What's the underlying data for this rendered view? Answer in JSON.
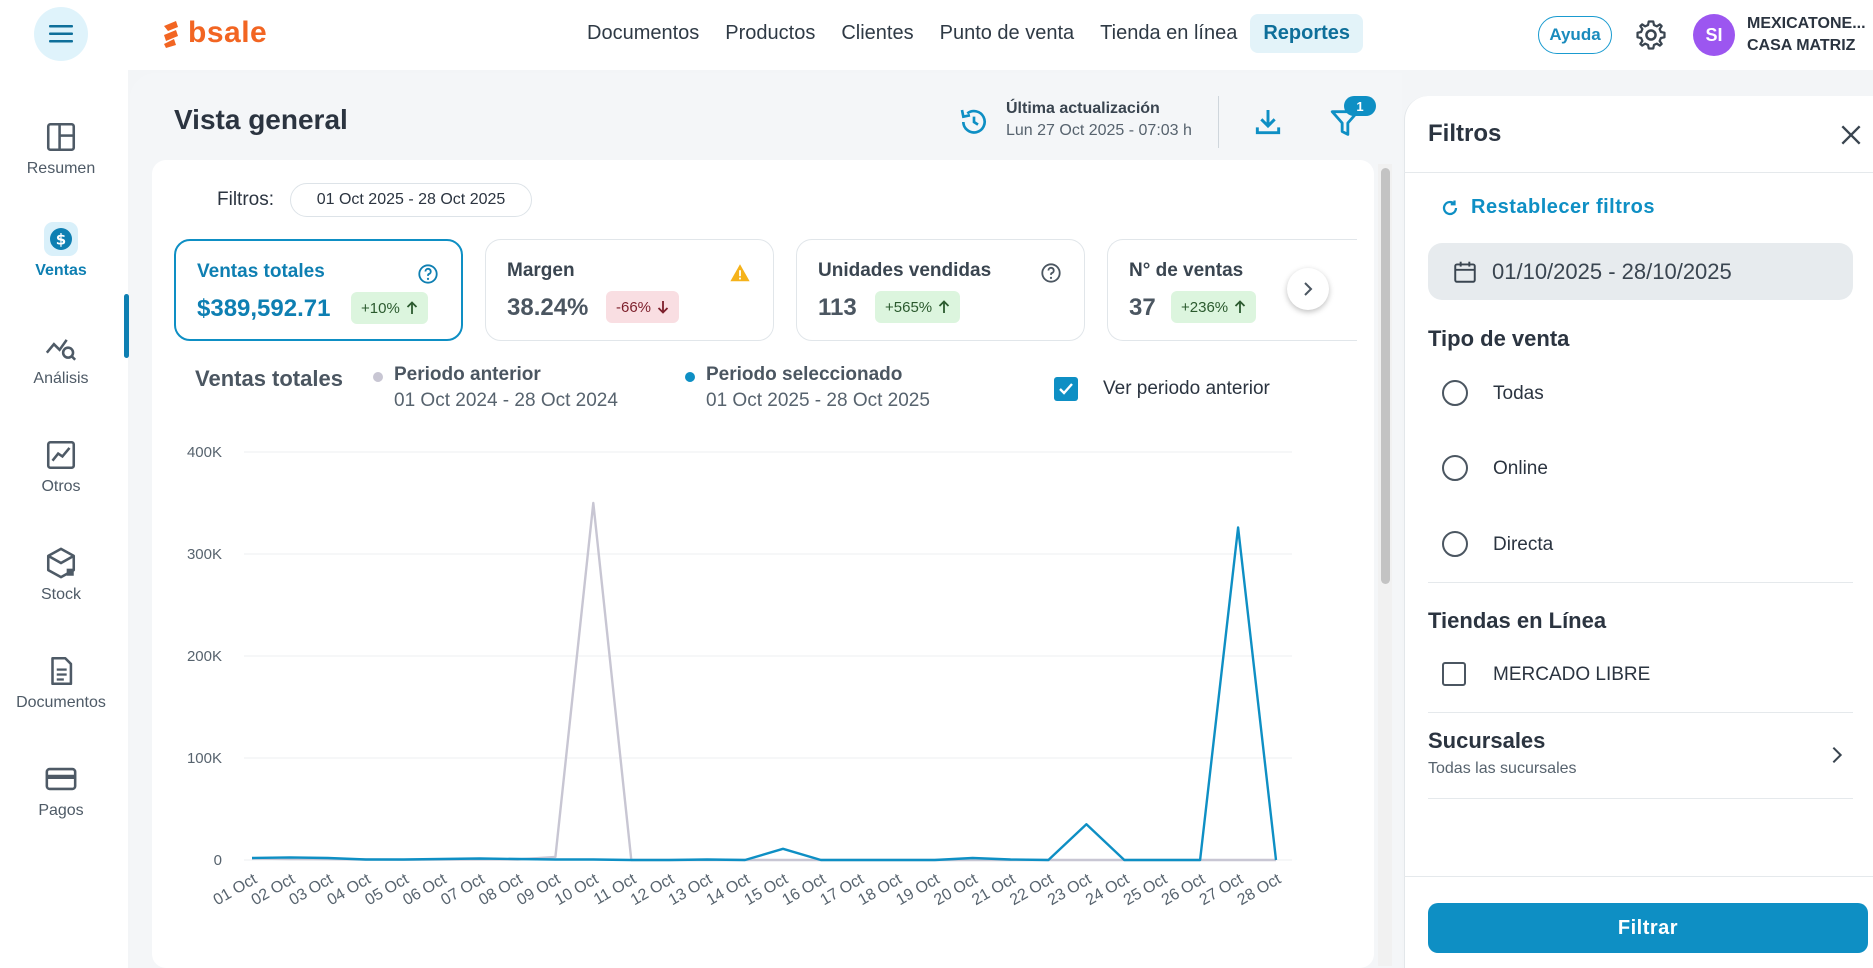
{
  "nav": {
    "logo": "bsale",
    "links": [
      {
        "label": "Documentos",
        "active": false
      },
      {
        "label": "Productos",
        "active": false
      },
      {
        "label": "Clientes",
        "active": false
      },
      {
        "label": "Punto de venta",
        "active": false
      },
      {
        "label": "Tienda en línea",
        "active": false
      },
      {
        "label": "Reportes",
        "active": true
      }
    ],
    "help_label": "Ayuda",
    "avatar_initials": "SI",
    "company_line1": "MEXICATONE...",
    "company_line2": "CASA MATRIZ"
  },
  "sidebar": {
    "items": [
      {
        "label": "Resumen",
        "icon": "layout-icon"
      },
      {
        "label": "Ventas",
        "icon": "dollar-icon",
        "active": true
      },
      {
        "label": "Análisis",
        "icon": "analysis-icon"
      },
      {
        "label": "Otros",
        "icon": "trend-icon"
      },
      {
        "label": "Stock",
        "icon": "box-icon"
      },
      {
        "label": "Documentos",
        "icon": "document-icon"
      },
      {
        "label": "Pagos",
        "icon": "card-icon"
      }
    ]
  },
  "header": {
    "title": "Vista general",
    "update_label": "Última actualización",
    "update_date": "Lun 27 Oct 2025 - 07:03 h",
    "filter_badge": "1"
  },
  "filters_bar": {
    "label": "Filtros:",
    "date_range": "01 Oct 2025 - 28 Oct 2025"
  },
  "kpis": [
    {
      "title": "Ventas totales",
      "value": "$389,592.71",
      "change": "+10%",
      "trend": "up",
      "icon": "help-icon",
      "selected": true
    },
    {
      "title": "Margen",
      "value": "38.24%",
      "change": "-66%",
      "trend": "down",
      "icon": "warning-icon",
      "selected": false
    },
    {
      "title": "Unidades vendidas",
      "value": "113",
      "change": "+565%",
      "trend": "up",
      "icon": "help-icon",
      "selected": false
    },
    {
      "title": "N° de ventas",
      "value": "37",
      "change": "+236%",
      "trend": "up",
      "icon": "help-icon",
      "selected": false
    }
  ],
  "chart_section": {
    "title": "Ventas totales",
    "legend": [
      {
        "name": "Periodo anterior",
        "range": "01 Oct 2024 - 28 Oct 2024",
        "color": "#c8c6d3"
      },
      {
        "name": "Periodo seleccionado",
        "range": "01 Oct 2025 - 28 Oct 2025",
        "color": "#0e8fc4"
      }
    ],
    "checkbox_label": "Ver periodo anterior",
    "checkbox_checked": true
  },
  "chart_data": {
    "type": "line",
    "categories": [
      "01 Oct",
      "02 Oct",
      "03 Oct",
      "04 Oct",
      "05 Oct",
      "06 Oct",
      "07 Oct",
      "08 Oct",
      "09 Oct",
      "10 Oct",
      "11 Oct",
      "12 Oct",
      "13 Oct",
      "14 Oct",
      "15 Oct",
      "16 Oct",
      "17 Oct",
      "18 Oct",
      "19 Oct",
      "20 Oct",
      "21 Oct",
      "22 Oct",
      "23 Oct",
      "24 Oct",
      "25 Oct",
      "26 Oct",
      "27 Oct",
      "28 Oct"
    ],
    "yticks": [
      "0",
      "100K",
      "200K",
      "300K",
      "400K"
    ],
    "ylim": [
      0,
      400000
    ],
    "grid": true,
    "series": [
      {
        "name": "Periodo anterior",
        "color": "#c8c6d3",
        "values": [
          1500,
          1000,
          800,
          500,
          300,
          400,
          600,
          500,
          3000,
          350000,
          0,
          0,
          0,
          0,
          0,
          0,
          0,
          0,
          0,
          0,
          0,
          0,
          0,
          0,
          0,
          0,
          0,
          0
        ]
      },
      {
        "name": "Periodo seleccionado",
        "color": "#0e8fc4",
        "values": [
          2000,
          2500,
          2000,
          500,
          500,
          1000,
          1500,
          1000,
          500,
          500,
          0,
          0,
          500,
          0,
          11000,
          0,
          0,
          0,
          0,
          2000,
          500,
          0,
          35000,
          0,
          0,
          0,
          326000,
          0
        ]
      }
    ]
  },
  "panel": {
    "title": "Filtros",
    "reset_label": "Restablecer filtros",
    "date_value": "01/10/2025 - 28/10/2025",
    "tipo_title": "Tipo de venta",
    "tipo_options": [
      "Todas",
      "Online",
      "Directa"
    ],
    "tiendas_title": "Tiendas en Línea",
    "tiendas_option": "MERCADO LIBRE",
    "sucursales_title": "Sucursales",
    "sucursales_sub": "Todas las sucursales",
    "submit_label": "Filtrar"
  }
}
